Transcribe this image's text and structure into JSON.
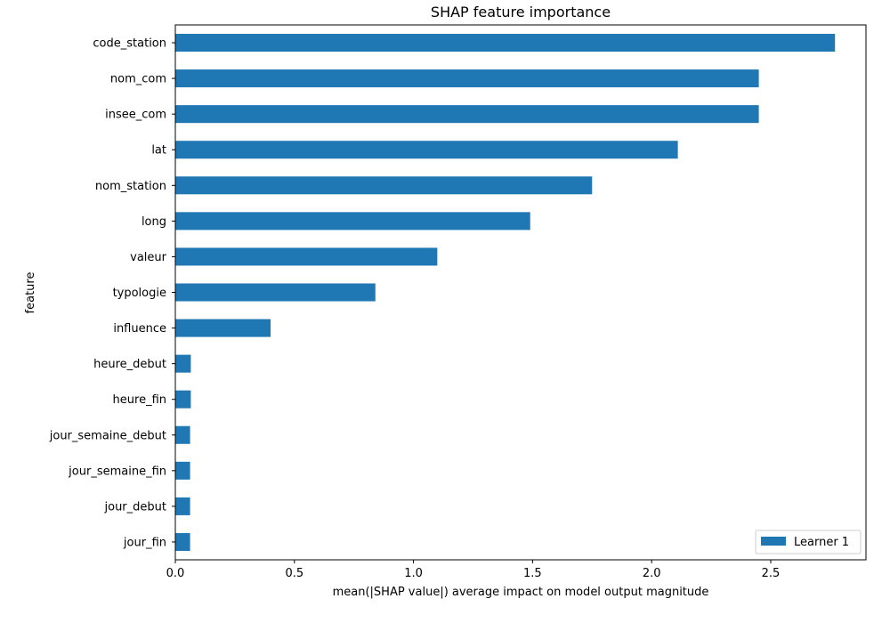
{
  "chart_data": {
    "type": "bar",
    "orientation": "horizontal",
    "title": "SHAP feature importance",
    "xlabel": "mean(|SHAP value|) average impact on model output magnitude",
    "ylabel": "feature",
    "xlim": [
      0,
      2.9
    ],
    "xticks": [
      "0.0",
      "0.5",
      "1.0",
      "1.5",
      "2.0",
      "2.5"
    ],
    "grid": false,
    "legend_position": "bottom-right",
    "bar_color": "#1f77b4",
    "categories": [
      "code_station",
      "nom_com",
      "insee_com",
      "lat",
      "nom_station",
      "long",
      "valeur",
      "typologie",
      "influence",
      "heure_debut",
      "heure_fin",
      "jour_semaine_debut",
      "jour_semaine_fin",
      "jour_debut",
      "jour_fin"
    ],
    "series": [
      {
        "name": "Learner 1",
        "values": [
          2.77,
          2.45,
          2.45,
          2.11,
          1.75,
          1.49,
          1.1,
          0.84,
          0.4,
          0.065,
          0.065,
          0.062,
          0.062,
          0.062,
          0.062
        ]
      }
    ]
  }
}
